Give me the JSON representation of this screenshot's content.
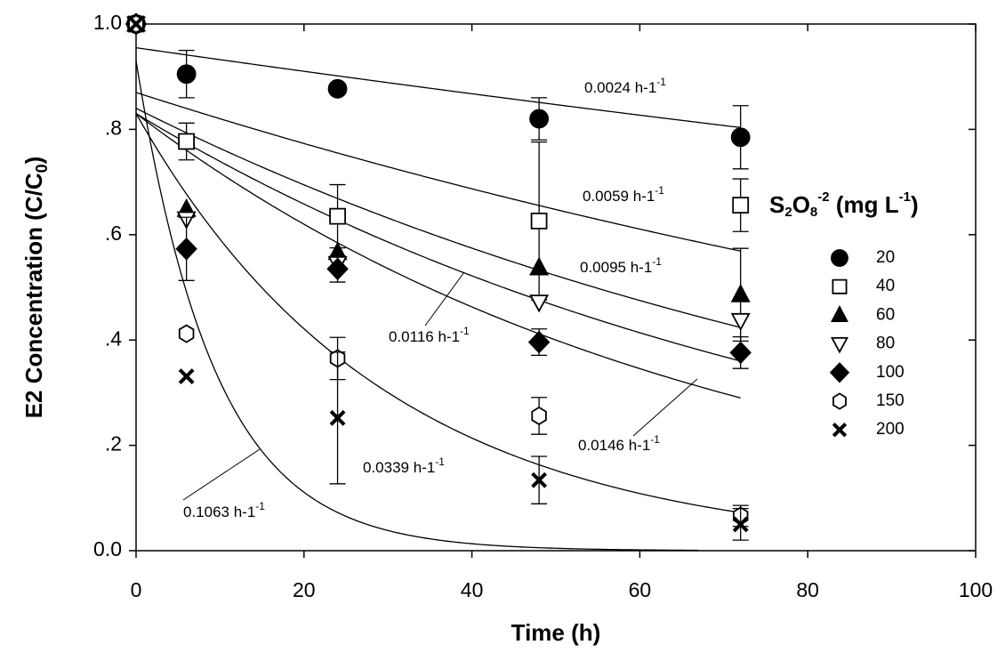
{
  "chart_data": {
    "type": "scatter",
    "xlabel": "Time (h)",
    "ylabel": {
      "main": "E2 Concentration (C/C",
      "sub": "0",
      "end": ")"
    },
    "xlim": [
      0,
      100
    ],
    "ylim": [
      0,
      1
    ],
    "xticks": [
      0,
      20,
      40,
      60,
      80,
      100
    ],
    "yticks": [
      {
        "value": 0,
        "label": "0.0"
      },
      {
        "value": 0.2,
        "label": ".2"
      },
      {
        "value": 0.4,
        "label": ".4"
      },
      {
        "value": 0.6,
        "label": ".6"
      },
      {
        "value": 0.8,
        "label": ".8"
      },
      {
        "value": 1,
        "label": "1.0"
      }
    ],
    "legend_title": {
      "s": "S",
      "s_sub": "2",
      "o": "O",
      "o_sub": "8",
      "o_sup": "-2",
      "unit": " (mg L",
      "unit_sup": "-1",
      "end": ")"
    },
    "legend": "right",
    "x": [
      0,
      6,
      24,
      48,
      72
    ],
    "series": [
      {
        "name": "20",
        "marker": "circle",
        "color": "#000000",
        "values": [
          1.0,
          0.905,
          0.877,
          0.82,
          0.785
        ],
        "errors": [
          null,
          0.045,
          null,
          0.04,
          0.06
        ]
      },
      {
        "name": "40",
        "marker": "square-open",
        "color": "#000000",
        "values": [
          1.0,
          0.777,
          0.635,
          0.626,
          0.656
        ],
        "errors": [
          null,
          0.035,
          0.06,
          0.15,
          0.05
        ]
      },
      {
        "name": "60",
        "marker": "triangle-up",
        "color": "#000000",
        "values": [
          1.0,
          0.648,
          0.566,
          0.537,
          0.486
        ],
        "errors": [
          null,
          null,
          null,
          null,
          0.088
        ]
      },
      {
        "name": "80",
        "marker": "triangle-down-open",
        "color": "#000000",
        "values": [
          1.0,
          0.63,
          0.545,
          0.472,
          0.437
        ],
        "errors": [
          null,
          null,
          null,
          null,
          null
        ]
      },
      {
        "name": "100",
        "marker": "diamond",
        "color": "#000000",
        "values": [
          1.0,
          0.573,
          0.535,
          0.396,
          0.376
        ],
        "errors": [
          null,
          0.06,
          0.025,
          0.025,
          0.03
        ]
      },
      {
        "name": "150",
        "marker": "hexagon-open",
        "color": "#000000",
        "values": [
          1.0,
          0.412,
          0.365,
          0.256,
          0.066
        ],
        "errors": [
          null,
          null,
          0.04,
          0.035,
          0.02
        ]
      },
      {
        "name": "200",
        "marker": "x",
        "color": "#000000",
        "values": [
          1.0,
          0.331,
          0.252,
          0.134,
          0.05
        ],
        "errors": [
          null,
          null,
          0.125,
          0.045,
          0.03
        ]
      }
    ],
    "fits": [
      {
        "k": 0.0024,
        "label": "0.0024 h-1",
        "sup": "-1",
        "c0": 0.955,
        "xmax": 72
      },
      {
        "k": 0.0059,
        "label": "0.0059 h-1",
        "sup": "-1",
        "c0": 0.87,
        "xmax": 72
      },
      {
        "k": 0.0095,
        "label": "0.0095 h-1",
        "sup": "-1",
        "c0": 0.84,
        "xmax": 72
      },
      {
        "k": 0.0116,
        "label": "0.0116 h-1",
        "sup": "-1",
        "c0": 0.83,
        "xmax": 72
      },
      {
        "k": 0.0146,
        "label": "0.0146 h-1",
        "sup": "-1",
        "c0": 0.83,
        "xmax": 72
      },
      {
        "k": 0.0339,
        "label": "0.0339 h-1",
        "sup": "-1",
        "c0": 0.83,
        "xmax": 72
      },
      {
        "k": 0.1063,
        "label": "0.1063 h-1",
        "sup": "-1",
        "c0": 0.93,
        "xmax": 67
      }
    ]
  }
}
